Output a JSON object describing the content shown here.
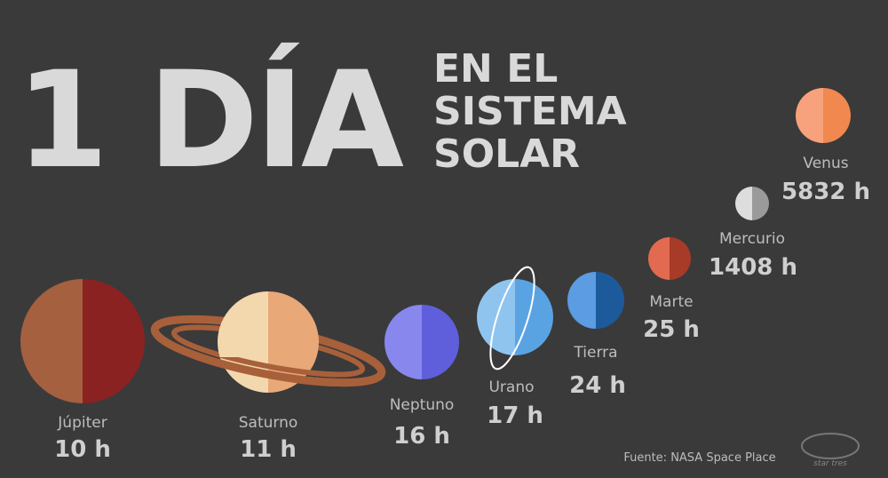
{
  "title": {
    "big": "1 DÍA",
    "small": [
      "EN EL",
      "SISTEMA",
      "SOLAR"
    ]
  },
  "planets": [
    {
      "name": "Júpiter",
      "day": "10 h"
    },
    {
      "name": "Saturno",
      "day": "11 h"
    },
    {
      "name": "Neptuno",
      "day": "16 h"
    },
    {
      "name": "Urano",
      "day": "17 h"
    },
    {
      "name": "Tierra",
      "day": "24 h"
    },
    {
      "name": "Marte",
      "day": "25 h"
    },
    {
      "name": "Mercurio",
      "day": "1408 h"
    },
    {
      "name": "Venus",
      "day": "5832 h"
    }
  ],
  "source": "Fuente: NASA Space Place",
  "logo": "star tres"
}
